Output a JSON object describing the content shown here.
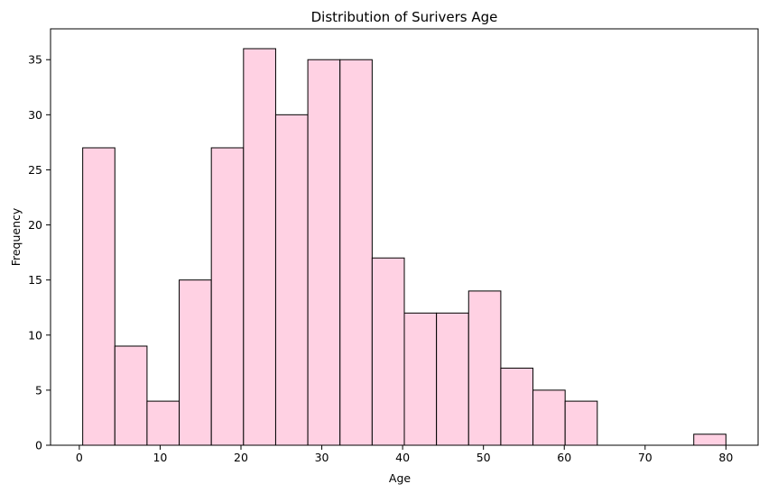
{
  "chart_data": {
    "type": "bar",
    "title": "Distribution of Surivers Age",
    "xlabel": "Age",
    "ylabel": "Frequency",
    "bin_edges": [
      0.42,
      4.399,
      8.378,
      12.357,
      16.336,
      20.315,
      24.294,
      28.273,
      32.252,
      36.231,
      40.21,
      44.189,
      48.168,
      52.147,
      56.126,
      60.105,
      64.084,
      68.063,
      72.042,
      76.021,
      80.0
    ],
    "values": [
      27,
      9,
      4,
      15,
      27,
      36,
      30,
      35,
      35,
      17,
      12,
      12,
      14,
      7,
      5,
      4,
      0,
      0,
      0,
      1
    ],
    "xlim": [
      -3.56,
      83.98
    ],
    "ylim": [
      0,
      37.8
    ],
    "xticks": [
      0,
      10,
      20,
      30,
      40,
      50,
      60,
      70,
      80
    ],
    "yticks": [
      0,
      5,
      10,
      15,
      20,
      25,
      30,
      35
    ],
    "bar_color": "#ffd1e3",
    "edge_color": "#000000",
    "grid": false,
    "legend": "none"
  }
}
